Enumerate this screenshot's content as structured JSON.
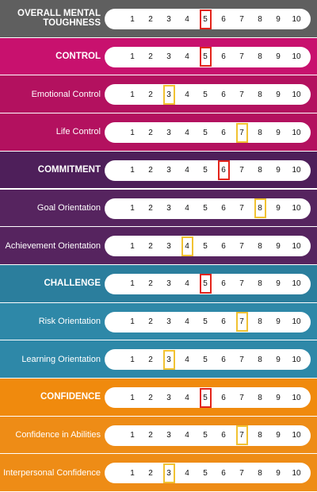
{
  "colors": {
    "overall": "#5f5f5f",
    "control_main": "#c8116e",
    "control_sub": "#b3115f",
    "commitment_main": "#4e1f5a",
    "commitment_sub": "#56245f",
    "challenge_main": "#2b7e9d",
    "challenge_sub": "#2e88a8",
    "confidence_main": "#f08a0d",
    "confidence_sub": "#ee8c16",
    "marker_main": "#e3241b",
    "marker_sub": "#f1c232"
  },
  "scale": [
    "1",
    "2",
    "3",
    "4",
    "5",
    "6",
    "7",
    "8",
    "9",
    "10"
  ],
  "rows": [
    {
      "label": "OVERALL MENTAL TOUGHNESS",
      "kind": "main",
      "group": "overall",
      "score": 5
    },
    {
      "label": "CONTROL",
      "kind": "main",
      "group": "control",
      "score": 5
    },
    {
      "label": "Emotional Control",
      "kind": "sub",
      "group": "control",
      "score": 3
    },
    {
      "label": "Life Control",
      "kind": "sub",
      "group": "control",
      "score": 7
    },
    {
      "label": "COMMITMENT",
      "kind": "main",
      "group": "commitment",
      "score": 6
    },
    {
      "label": "Goal Orientation",
      "kind": "sub",
      "group": "commitment",
      "score": 8
    },
    {
      "label": "Achievement Orientation",
      "kind": "sub",
      "group": "commitment",
      "score": 4
    },
    {
      "label": "CHALLENGE",
      "kind": "main",
      "group": "challenge",
      "score": 5
    },
    {
      "label": "Risk Orientation",
      "kind": "sub",
      "group": "challenge",
      "score": 7
    },
    {
      "label": "Learning Orientation",
      "kind": "sub",
      "group": "challenge",
      "score": 3
    },
    {
      "label": "CONFIDENCE",
      "kind": "main",
      "group": "confidence",
      "score": 5
    },
    {
      "label": "Confidence in Abilities",
      "kind": "sub",
      "group": "confidence",
      "score": 7
    },
    {
      "label": "Interpersonal Confidence",
      "kind": "sub",
      "group": "confidence",
      "score": 3
    }
  ]
}
